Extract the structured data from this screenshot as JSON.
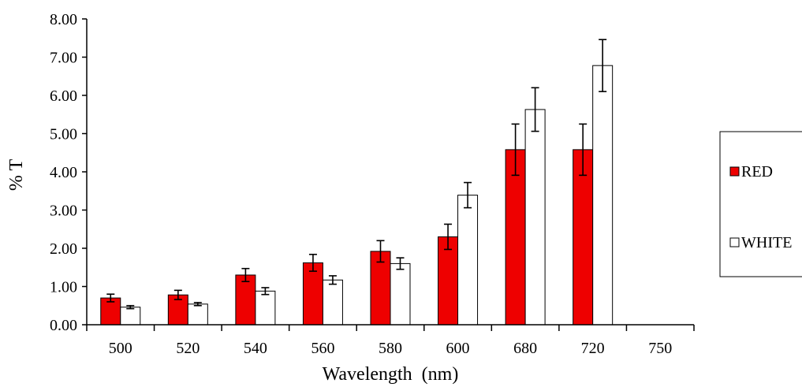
{
  "chart_data": {
    "type": "bar",
    "categories": [
      "500",
      "520",
      "540",
      "560",
      "580",
      "600",
      "680",
      "720",
      "750"
    ],
    "series": [
      {
        "name": "RED",
        "color": "#ee0000",
        "values": [
          0.7,
          0.78,
          1.3,
          1.62,
          1.92,
          2.3,
          4.58,
          4.58,
          null
        ],
        "errors": [
          0.1,
          0.12,
          0.17,
          0.22,
          0.28,
          0.33,
          0.67,
          0.67,
          null
        ]
      },
      {
        "name": "WHITE",
        "color": "#ffffff",
        "values": [
          0.46,
          0.54,
          0.88,
          1.17,
          1.6,
          3.39,
          5.63,
          6.78,
          null
        ],
        "errors": [
          0.04,
          0.04,
          0.09,
          0.11,
          0.15,
          0.33,
          0.57,
          0.68,
          null
        ]
      }
    ],
    "xlabel": "Wavelength  (nm)",
    "ylabel": "% T",
    "ylim": [
      0,
      8
    ],
    "yticks": [
      "0.00",
      "1.00",
      "2.00",
      "3.00",
      "4.00",
      "5.00",
      "6.00",
      "7.00",
      "8.00"
    ],
    "grid": false,
    "legend_position": "right"
  }
}
